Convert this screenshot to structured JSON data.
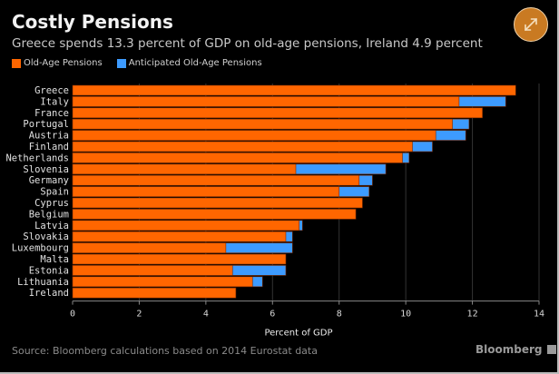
{
  "header": {
    "title": "Costly Pensions",
    "subtitle": "Greece spends 13.3 percent of GDP on old-age pensions, Ireland 4.9 percent",
    "expand_icon": "expand-arrows-icon"
  },
  "footer": {
    "source": "Source: Bloomberg calculations based on 2014 Eurostat data",
    "brand": "Bloomberg"
  },
  "colors": {
    "old_age": "#ff6600",
    "anticipated": "#3d9bff",
    "separator": "#7a2a00",
    "grid": "#333333"
  },
  "chart_data": {
    "type": "bar",
    "orientation": "horizontal",
    "stacked_overlay": true,
    "title": "Costly Pensions",
    "subtitle": "Greece spends 13.3 percent of GDP on old-age pensions, Ireland 4.9 percent",
    "xlabel": "Percent of GDP",
    "ylabel": "",
    "xlim": [
      0,
      14
    ],
    "xticks": [
      0,
      2,
      4,
      6,
      8,
      10,
      12,
      14
    ],
    "grid": true,
    "legend_position": "top-left",
    "categories": [
      "Greece",
      "Italy",
      "France",
      "Portugal",
      "Austria",
      "Finland",
      "Netherlands",
      "Slovenia",
      "Germany",
      "Spain",
      "Cyprus",
      "Belgium",
      "Latvia",
      "Slovakia",
      "Luxembourg",
      "Malta",
      "Estonia",
      "Lithuania",
      "Ireland"
    ],
    "series": [
      {
        "name": "Old-Age Pensions",
        "color": "#ff6600",
        "values": [
          13.3,
          11.6,
          12.3,
          11.4,
          10.9,
          10.2,
          9.9,
          6.7,
          8.6,
          8.0,
          8.7,
          8.5,
          6.8,
          6.4,
          4.6,
          6.4,
          4.8,
          5.4,
          4.9
        ]
      },
      {
        "name": "Anticipated Old-Age Pensions",
        "color": "#3d9bff",
        "values": [
          null,
          13.0,
          null,
          11.9,
          11.8,
          10.8,
          10.1,
          9.4,
          9.0,
          8.9,
          null,
          null,
          6.9,
          6.6,
          6.6,
          null,
          6.4,
          5.7,
          null
        ]
      }
    ]
  }
}
